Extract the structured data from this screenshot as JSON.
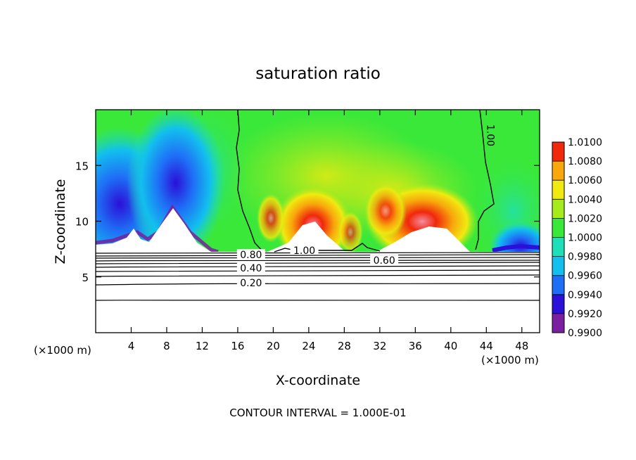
{
  "chart_data": {
    "type": "heatmap",
    "title": "saturation ratio",
    "xlabel": "X-coordinate",
    "ylabel": "Z-coordinate",
    "xunit": "(×1000 m)",
    "footer": "CONTOUR INTERVAL = 1.000E-01",
    "xlim": [
      0,
      50
    ],
    "ylim": [
      0,
      20
    ],
    "x_ticks": [
      4,
      8,
      12,
      16,
      20,
      24,
      28,
      32,
      36,
      40,
      44,
      48
    ],
    "y_ticks": [
      5,
      10,
      15
    ],
    "colorbar": {
      "levels": [
        "1.0100",
        "1.0080",
        "1.0060",
        "1.0040",
        "1.0020",
        "1.0000",
        "0.9980",
        "0.9960",
        "0.9940",
        "0.9920",
        "0.9900"
      ],
      "range": [
        0.99,
        1.01
      ],
      "colors": [
        "#7a1fa0",
        "#2a10d8",
        "#1f6ef6",
        "#12bfee",
        "#1ee0b8",
        "#3ae83a",
        "#a6ec1c",
        "#f0ea10",
        "#f8a70c",
        "#f0280c",
        "#f48ca0"
      ]
    },
    "contour_labels": [
      {
        "text": "1.00",
        "x": 44.5,
        "z": 17.7
      },
      {
        "text": "1.00",
        "x": 23.5,
        "z": 7.2
      },
      {
        "text": "0.80",
        "x": 17.5,
        "z": 6.8
      },
      {
        "text": "0.60",
        "x": 32.5,
        "z": 6.3
      },
      {
        "text": "0.40",
        "x": 17.5,
        "z": 5.6
      },
      {
        "text": "0.20",
        "x": 17.5,
        "z": 4.3
      }
    ]
  }
}
